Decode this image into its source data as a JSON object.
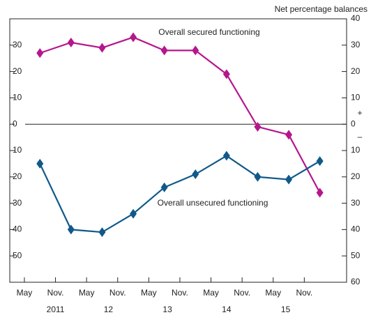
{
  "chart_data": {
    "type": "line",
    "axis_label": "Net percentage balances",
    "sign_labels": [
      "+",
      "–"
    ],
    "x": [
      0.5,
      1.5,
      2.5,
      3.5,
      4.5,
      5.5,
      6.5,
      7.5,
      8.5,
      9.5
    ],
    "xlim": [
      -0.47,
      10.36
    ],
    "xticks": [
      {
        "value": 0,
        "label": "May"
      },
      {
        "value": 1,
        "label": "Nov."
      },
      {
        "value": 2,
        "label": "May"
      },
      {
        "value": 3,
        "label": "Nov."
      },
      {
        "value": 4,
        "label": "May"
      },
      {
        "value": 5,
        "label": "Nov."
      },
      {
        "value": 6,
        "label": "May"
      },
      {
        "value": 7,
        "label": "Nov."
      },
      {
        "value": 8,
        "label": "May"
      },
      {
        "value": 9,
        "label": "Nov."
      }
    ],
    "year_ticks": [
      {
        "value": 1,
        "label": "2011"
      },
      {
        "value": 2.7,
        "label": "12"
      },
      {
        "value": 4.6,
        "label": "13"
      },
      {
        "value": 6.5,
        "label": "14"
      },
      {
        "value": 8.4,
        "label": "15"
      }
    ],
    "ylim": [
      -60,
      40
    ],
    "yticks": [
      40,
      30,
      20,
      10,
      0,
      {
        "value": -10,
        "label": "10"
      },
      {
        "value": -20,
        "label": "20"
      },
      {
        "value": -30,
        "label": "30"
      },
      {
        "value": -40,
        "label": "40"
      },
      {
        "value": -50,
        "label": "50"
      },
      {
        "value": -60,
        "label": "60"
      }
    ],
    "series": [
      {
        "name": "Overall secured functioning",
        "color": "#b5178c",
        "values": [
          27,
          31,
          29,
          33,
          28,
          28,
          19,
          -1,
          -4,
          -26
        ]
      },
      {
        "name": "Overall unsecured functioning",
        "color": "#10598a",
        "values": [
          -15,
          -40,
          -41,
          -34,
          -24,
          -19,
          -12,
          -20,
          -21,
          -14
        ]
      }
    ]
  }
}
